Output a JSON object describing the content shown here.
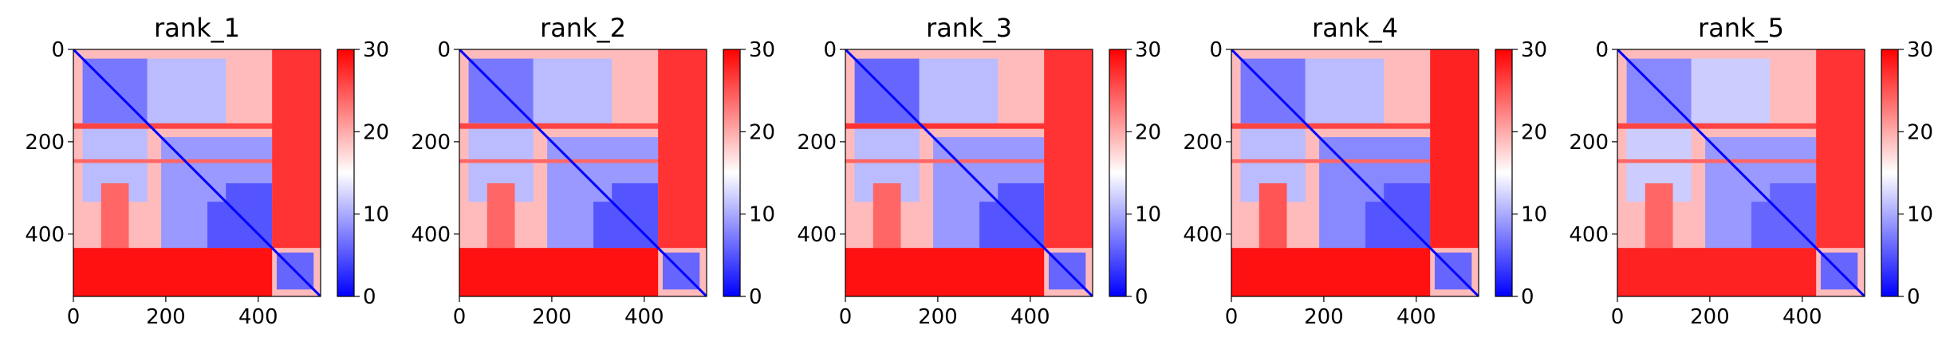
{
  "chart_data": [
    {
      "type": "heatmap",
      "title": "rank_1",
      "xticks": [
        "0",
        "200",
        "400"
      ],
      "yticks": [
        "0",
        "200",
        "400"
      ],
      "xlim": [
        0,
        535
      ],
      "ylim": [
        0,
        535
      ],
      "colorbar": {
        "ticks": [
          "0",
          "10",
          "20",
          "30"
        ],
        "range": [
          0,
          30
        ],
        "colormap": "bwr"
      },
      "blocks": [
        {
          "x": [
            20,
            160
          ],
          "y": [
            20,
            160
          ],
          "value": 7
        },
        {
          "x": [
            190,
            430
          ],
          "y": [
            190,
            430
          ],
          "value": 9
        },
        {
          "x": [
            330,
            430
          ],
          "y": [
            290,
            430
          ],
          "value": 5
        },
        {
          "x": [
            160,
            330
          ],
          "y": [
            20,
            160
          ],
          "value": 11
        },
        {
          "x": [
            20,
            160
          ],
          "y": [
            160,
            330
          ],
          "value": 11
        },
        {
          "x": [
            440,
            520
          ],
          "y": [
            440,
            520
          ],
          "value": 6
        }
      ],
      "bands": [
        {
          "axis": "row",
          "range": [
            160,
            172
          ],
          "value": 26
        },
        {
          "axis": "row",
          "range": [
            238,
            246
          ],
          "value": 24
        },
        {
          "axis": "col",
          "range": [
            60,
            120
          ],
          "from": 290,
          "to": 430,
          "value": 24
        },
        {
          "axis": "row",
          "range": [
            430,
            535
          ],
          "from": 0,
          "to": 430,
          "value": 29
        },
        {
          "axis": "col",
          "range": [
            430,
            535
          ],
          "from": 0,
          "to": 430,
          "value": 27
        }
      ]
    },
    {
      "type": "heatmap",
      "title": "rank_2",
      "xticks": [
        "0",
        "200",
        "400"
      ],
      "yticks": [
        "0",
        "200",
        "400"
      ],
      "xlim": [
        0,
        535
      ],
      "ylim": [
        0,
        535
      ],
      "colorbar": {
        "ticks": [
          "0",
          "10",
          "20",
          "30"
        ],
        "range": [
          0,
          30
        ],
        "colormap": "bwr"
      },
      "blocks": [
        {
          "x": [
            20,
            160
          ],
          "y": [
            20,
            160
          ],
          "value": 7
        },
        {
          "x": [
            190,
            430
          ],
          "y": [
            190,
            430
          ],
          "value": 9
        },
        {
          "x": [
            330,
            430
          ],
          "y": [
            290,
            430
          ],
          "value": 5
        },
        {
          "x": [
            160,
            330
          ],
          "y": [
            20,
            160
          ],
          "value": 11
        },
        {
          "x": [
            20,
            160
          ],
          "y": [
            160,
            330
          ],
          "value": 11
        },
        {
          "x": [
            440,
            520
          ],
          "y": [
            440,
            520
          ],
          "value": 6
        }
      ],
      "bands": [
        {
          "axis": "row",
          "range": [
            160,
            172
          ],
          "value": 26
        },
        {
          "axis": "row",
          "range": [
            238,
            246
          ],
          "value": 24
        },
        {
          "axis": "col",
          "range": [
            60,
            120
          ],
          "from": 290,
          "to": 430,
          "value": 24
        },
        {
          "axis": "row",
          "range": [
            430,
            535
          ],
          "from": 0,
          "to": 430,
          "value": 29
        },
        {
          "axis": "col",
          "range": [
            430,
            535
          ],
          "from": 0,
          "to": 430,
          "value": 27
        }
      ]
    },
    {
      "type": "heatmap",
      "title": "rank_3",
      "xticks": [
        "0",
        "200",
        "400"
      ],
      "yticks": [
        "0",
        "200",
        "400"
      ],
      "xlim": [
        0,
        535
      ],
      "ylim": [
        0,
        535
      ],
      "colorbar": {
        "ticks": [
          "0",
          "10",
          "20",
          "30"
        ],
        "range": [
          0,
          30
        ],
        "colormap": "bwr"
      },
      "blocks": [
        {
          "x": [
            20,
            160
          ],
          "y": [
            20,
            160
          ],
          "value": 6
        },
        {
          "x": [
            190,
            430
          ],
          "y": [
            190,
            430
          ],
          "value": 9
        },
        {
          "x": [
            330,
            430
          ],
          "y": [
            290,
            430
          ],
          "value": 5
        },
        {
          "x": [
            160,
            330
          ],
          "y": [
            20,
            160
          ],
          "value": 11
        },
        {
          "x": [
            20,
            160
          ],
          "y": [
            160,
            330
          ],
          "value": 11
        },
        {
          "x": [
            440,
            520
          ],
          "y": [
            440,
            520
          ],
          "value": 6
        }
      ],
      "bands": [
        {
          "axis": "row",
          "range": [
            160,
            172
          ],
          "value": 27
        },
        {
          "axis": "row",
          "range": [
            238,
            246
          ],
          "value": 24
        },
        {
          "axis": "col",
          "range": [
            60,
            120
          ],
          "from": 290,
          "to": 430,
          "value": 24
        },
        {
          "axis": "row",
          "range": [
            430,
            535
          ],
          "from": 0,
          "to": 430,
          "value": 29
        },
        {
          "axis": "col",
          "range": [
            430,
            535
          ],
          "from": 0,
          "to": 430,
          "value": 27
        }
      ]
    },
    {
      "type": "heatmap",
      "title": "rank_4",
      "xticks": [
        "0",
        "200",
        "400"
      ],
      "yticks": [
        "0",
        "200",
        "400"
      ],
      "xlim": [
        0,
        535
      ],
      "ylim": [
        0,
        535
      ],
      "colorbar": {
        "ticks": [
          "0",
          "10",
          "20",
          "30"
        ],
        "range": [
          0,
          30
        ],
        "colormap": "bwr"
      },
      "blocks": [
        {
          "x": [
            20,
            160
          ],
          "y": [
            20,
            160
          ],
          "value": 7
        },
        {
          "x": [
            190,
            430
          ],
          "y": [
            190,
            430
          ],
          "value": 8
        },
        {
          "x": [
            330,
            430
          ],
          "y": [
            290,
            430
          ],
          "value": 5
        },
        {
          "x": [
            160,
            330
          ],
          "y": [
            20,
            160
          ],
          "value": 11
        },
        {
          "x": [
            20,
            160
          ],
          "y": [
            160,
            330
          ],
          "value": 11
        },
        {
          "x": [
            440,
            520
          ],
          "y": [
            440,
            520
          ],
          "value": 6
        }
      ],
      "bands": [
        {
          "axis": "row",
          "range": [
            160,
            172
          ],
          "value": 26
        },
        {
          "axis": "row",
          "range": [
            238,
            246
          ],
          "value": 24
        },
        {
          "axis": "col",
          "range": [
            60,
            120
          ],
          "from": 290,
          "to": 430,
          "value": 25
        },
        {
          "axis": "row",
          "range": [
            430,
            535
          ],
          "from": 0,
          "to": 430,
          "value": 29
        },
        {
          "axis": "col",
          "range": [
            430,
            535
          ],
          "from": 0,
          "to": 430,
          "value": 28
        }
      ]
    },
    {
      "type": "heatmap",
      "title": "rank_5",
      "xticks": [
        "0",
        "200",
        "400"
      ],
      "yticks": [
        "0",
        "200",
        "400"
      ],
      "xlim": [
        0,
        535
      ],
      "ylim": [
        0,
        535
      ],
      "colorbar": {
        "ticks": [
          "0",
          "10",
          "20",
          "30"
        ],
        "range": [
          0,
          30
        ],
        "colormap": "bwr"
      },
      "blocks": [
        {
          "x": [
            20,
            160
          ],
          "y": [
            20,
            160
          ],
          "value": 8
        },
        {
          "x": [
            190,
            430
          ],
          "y": [
            190,
            430
          ],
          "value": 9
        },
        {
          "x": [
            330,
            430
          ],
          "y": [
            290,
            430
          ],
          "value": 6
        },
        {
          "x": [
            160,
            330
          ],
          "y": [
            20,
            160
          ],
          "value": 12
        },
        {
          "x": [
            20,
            160
          ],
          "y": [
            160,
            330
          ],
          "value": 12
        },
        {
          "x": [
            440,
            520
          ],
          "y": [
            440,
            520
          ],
          "value": 6
        }
      ],
      "bands": [
        {
          "axis": "row",
          "range": [
            160,
            172
          ],
          "value": 26
        },
        {
          "axis": "row",
          "range": [
            238,
            246
          ],
          "value": 24
        },
        {
          "axis": "col",
          "range": [
            60,
            120
          ],
          "from": 290,
          "to": 430,
          "value": 24
        },
        {
          "axis": "row",
          "range": [
            430,
            535
          ],
          "from": 0,
          "to": 430,
          "value": 28
        },
        {
          "axis": "col",
          "range": [
            430,
            535
          ],
          "from": 0,
          "to": 430,
          "value": 27
        }
      ]
    }
  ]
}
